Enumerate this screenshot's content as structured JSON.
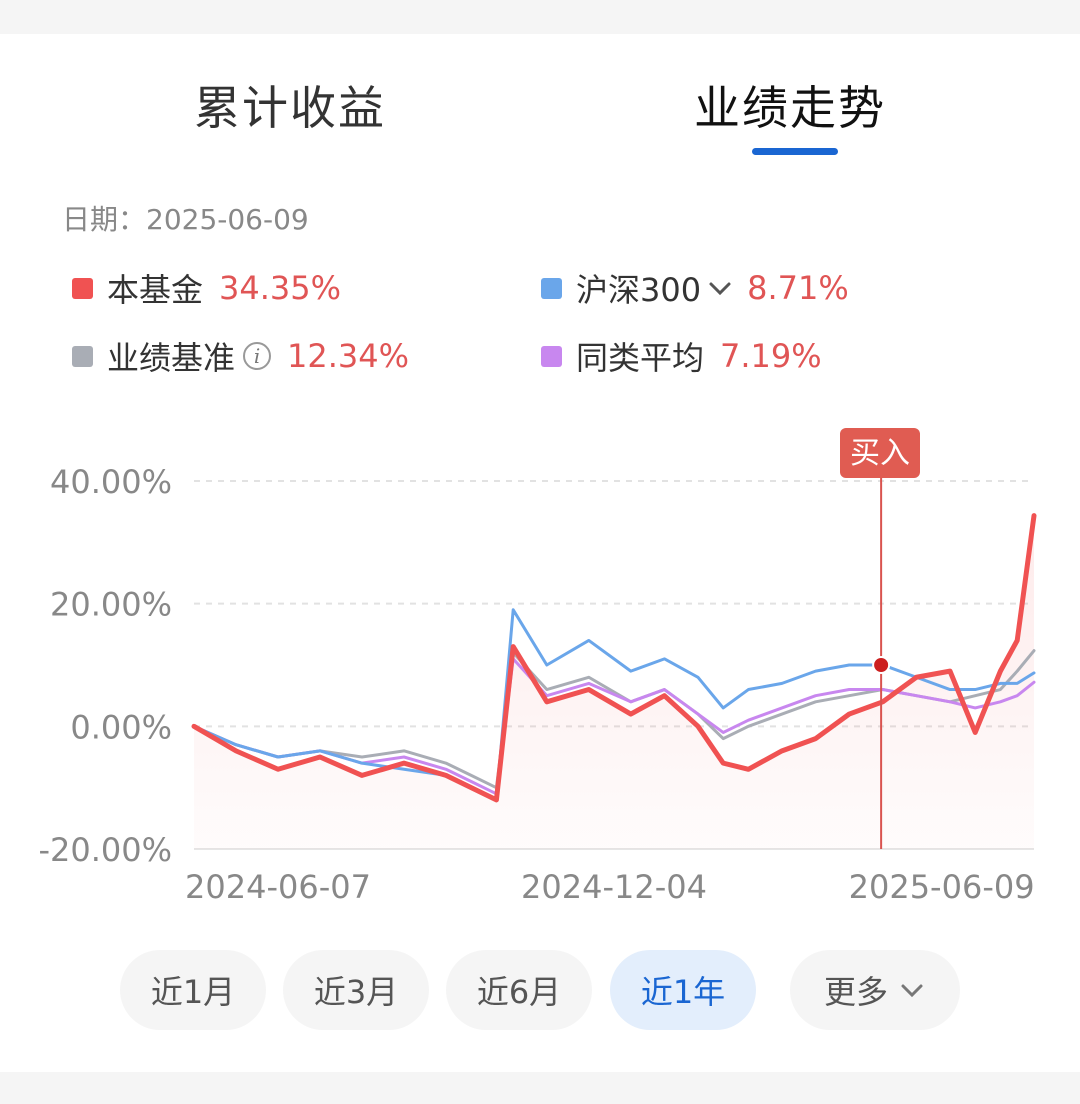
{
  "tabs": [
    {
      "label": "累计收益",
      "active": false
    },
    {
      "label": "业绩走势",
      "active": true
    }
  ],
  "date_text": "日期：2025-06-09",
  "legend": [
    {
      "name": "本基金",
      "value": "34.35%",
      "color": "#f05252"
    },
    {
      "name": "沪深300",
      "value": "8.71%",
      "color": "#6aa6ea"
    },
    {
      "name": "业绩基准",
      "value": "12.34%",
      "color": "#a9adb5"
    },
    {
      "name": "同类平均",
      "value": "7.19%",
      "color": "#c887ef"
    }
  ],
  "buy_marker": {
    "label": "买入"
  },
  "range_buttons": [
    {
      "label": "近1月",
      "active": false
    },
    {
      "label": "近3月",
      "active": false
    },
    {
      "label": "近6月",
      "active": false
    },
    {
      "label": "近1年",
      "active": true
    },
    {
      "label": "更多",
      "active": false
    }
  ],
  "chart_data": {
    "type": "line",
    "y_ticks": [
      "40.00%",
      "20.00%",
      "0.00%",
      "-20.00%"
    ],
    "x_ticks": [
      "2024-06-07",
      "2024-12-04",
      "2025-06-09"
    ],
    "ylim": [
      -20,
      40
    ],
    "grid": true,
    "x": [
      0,
      0.05,
      0.1,
      0.15,
      0.2,
      0.25,
      0.3,
      0.33,
      0.36,
      0.38,
      0.42,
      0.47,
      0.52,
      0.56,
      0.6,
      0.63,
      0.66,
      0.7,
      0.74,
      0.78,
      0.82,
      0.86,
      0.9,
      0.93,
      0.96,
      0.98,
      1.0
    ],
    "series": [
      {
        "name": "本基金",
        "color": "#f05252",
        "values": [
          0,
          -4,
          -7,
          -5,
          -8,
          -6,
          -8,
          -10,
          -12,
          13,
          4,
          6,
          2,
          5,
          0,
          -6,
          -7,
          -4,
          -2,
          2,
          4,
          8,
          9,
          -1,
          9,
          14,
          34.35
        ]
      },
      {
        "name": "沪深300",
        "color": "#6aa6ea",
        "values": [
          0,
          -3,
          -5,
          -4,
          -6,
          -7,
          -8,
          -10,
          -12,
          19,
          10,
          14,
          9,
          11,
          8,
          3,
          6,
          7,
          9,
          10,
          10,
          8,
          6,
          6,
          7,
          7,
          8.71
        ]
      },
      {
        "name": "业绩基准",
        "color": "#a9adb5",
        "values": [
          0,
          -3,
          -5,
          -4,
          -5,
          -4,
          -6,
          -8,
          -10,
          12,
          6,
          8,
          4,
          6,
          2,
          -2,
          0,
          2,
          4,
          5,
          6,
          5,
          4,
          5,
          6,
          9,
          12.34
        ]
      },
      {
        "name": "同类平均",
        "color": "#c887ef",
        "values": [
          0,
          -3,
          -5,
          -4,
          -6,
          -5,
          -7,
          -9,
          -11,
          11,
          5,
          7,
          4,
          6,
          2,
          -1,
          1,
          3,
          5,
          6,
          6,
          5,
          4,
          3,
          4,
          5,
          7.19
        ]
      }
    ],
    "buy_point": {
      "x": 0.818,
      "y": 10
    }
  }
}
